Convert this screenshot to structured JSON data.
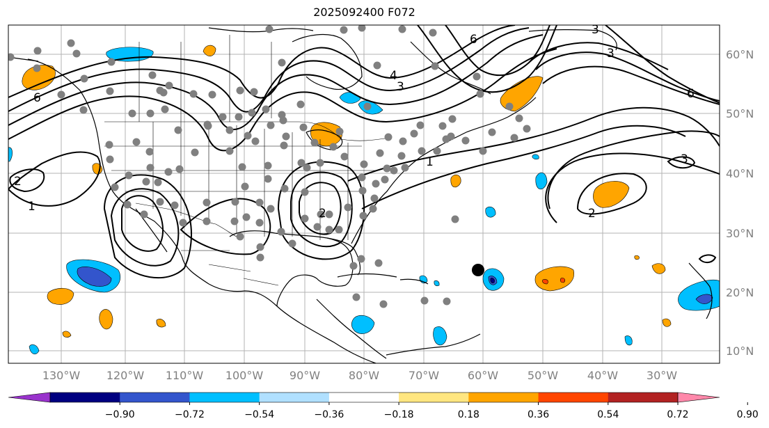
{
  "title": "2025092400 F072",
  "lon_labels": [
    "130°W",
    "120°W",
    "110°W",
    "100°W",
    "90°W",
    "80°W",
    "70°W",
    "60°W",
    "50°W",
    "40°W",
    "30°W"
  ],
  "lat_labels": [
    "60°N",
    "50°N",
    "40°N",
    "30°N",
    "20°N",
    "10°N"
  ],
  "contour_labels": [
    "6",
    "3",
    "2",
    "1",
    "1",
    "2",
    "3",
    "6",
    "3",
    "6",
    "3",
    "2",
    "4"
  ],
  "colorbar": {
    "tick_labels": [
      "−0.90",
      "−0.72",
      "−0.54",
      "−0.36",
      "−0.18",
      "0.18",
      "0.36",
      "0.54",
      "0.72",
      "0.90"
    ],
    "colors": [
      "#9933cc",
      "#000080",
      "#3355cc",
      "#00bfff",
      "#b0e0ff",
      "#ffffff",
      "#ffe680",
      "#ffa500",
      "#ff4500",
      "#b22222",
      "#ff88aa"
    ]
  },
  "colors": {
    "land_outline": "#000000",
    "grid": "#b3b3b3",
    "station": "#808080",
    "contour": "#000000"
  }
}
